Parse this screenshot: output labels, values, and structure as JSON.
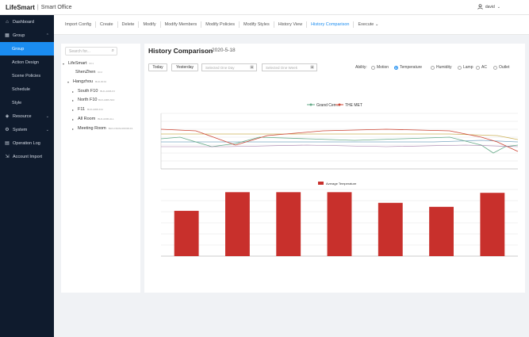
{
  "app": {
    "brand": "LifeSmart",
    "separator": "|",
    "product": "Smart Office"
  },
  "user": {
    "name": "david"
  },
  "sidebar": {
    "items": [
      {
        "label": "Dashboard",
        "icon": "home-icon"
      },
      {
        "label": "Group",
        "icon": "grid-icon",
        "expanded": true
      },
      {
        "label": "Resource",
        "icon": "cube-icon"
      },
      {
        "label": "System",
        "icon": "gear-icon"
      },
      {
        "label": "Operation Log",
        "icon": "log-icon"
      },
      {
        "label": "Account Import",
        "icon": "import-icon"
      }
    ],
    "group_children": [
      "Group",
      "Action Design",
      "Scene Policies",
      "Schedule",
      "Style"
    ]
  },
  "toolbar": [
    "Import Config",
    "Create",
    "Delete",
    "Modify",
    "Modify Members",
    "Modify Policies",
    "Modify Styles",
    "History View",
    "History Comparison",
    "Execute"
  ],
  "tree": {
    "search_placeholder": "Search for...",
    "nodes": [
      {
        "label": "LifeSmart",
        "tag": "ID:1"
      },
      {
        "label": "ShenZhen",
        "tag": "ID:2"
      },
      {
        "label": "Hangzhou",
        "tag": "BLD-ID:01"
      },
      {
        "label": "South F10",
        "tag": "BLD-A006-F3"
      },
      {
        "label": "North F10",
        "tag": "BLD-A006-N10"
      },
      {
        "label": "F11",
        "tag": "BLD-A006-F11"
      },
      {
        "label": "All Room",
        "tag": "BLD-A006-ALL"
      },
      {
        "label": "Meeting Room",
        "tag": "BLD-CNCM-ROOM-F1"
      }
    ]
  },
  "page": {
    "title": "History Comparison",
    "date": "2020-5-18",
    "btn_today": "Today",
    "btn_yesterday": "Yesterday",
    "picker_day": "Selected One Day",
    "picker_week": "Selected One Week",
    "ability_label": "Ability:",
    "abilities": [
      "Motion",
      "Temperature",
      "Humidity",
      "Lamp",
      "AC",
      "Outlet"
    ],
    "ability_selected": "Temperature"
  },
  "chart_data": [
    {
      "type": "line",
      "legend": [
        "Grand Cen...",
        "THE MET"
      ],
      "legend_position": "top-center",
      "grid": true,
      "colors": {
        "Grand Cen...": "#66aa88",
        "THE MET": "#cc4433"
      }
    },
    {
      "type": "bar",
      "legend": [
        "Average Temperature"
      ],
      "legend_position": "top-center",
      "grid": true,
      "bar_color": "#c8302c",
      "values": [
        0.68,
        0.96,
        0.96,
        0.96,
        0.8,
        0.74,
        0.95
      ]
    }
  ]
}
